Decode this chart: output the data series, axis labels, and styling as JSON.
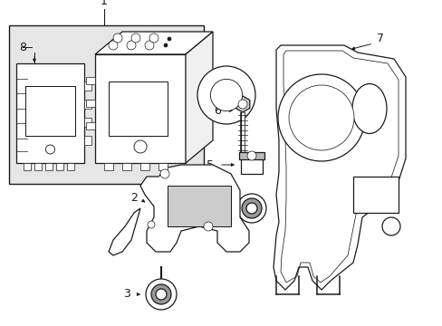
{
  "bg_color": "#ffffff",
  "box_bg": "#e6e6e6",
  "line_color": "#1a1a1a",
  "lw": 0.9,
  "fig_w": 4.89,
  "fig_h": 3.6,
  "dpi": 100,
  "label_fontsize": 8.5
}
